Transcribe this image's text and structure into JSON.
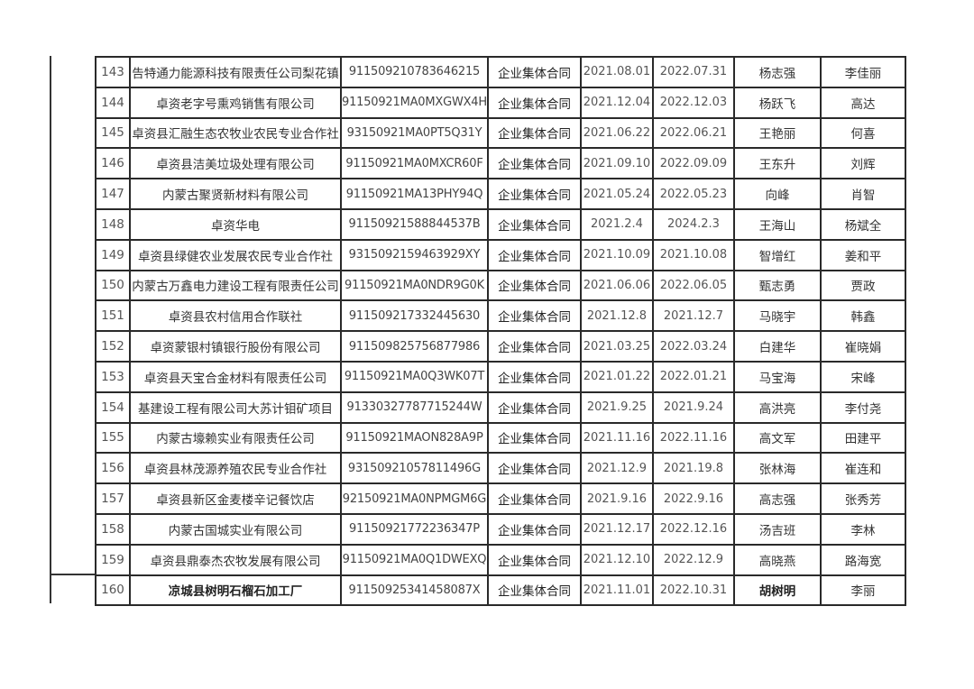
{
  "rows": [
    {
      "no": "143",
      "name": "告特通力能源科技有限责任公司梨花镇",
      "code": "91150921078364621​5",
      "type": "企业集体合同",
      "start": "2021.08.01",
      "end": "2022.07.31",
      "p1": "杨志强",
      "p2": "李佳丽"
    },
    {
      "no": "144",
      "name": "卓资老字号熏鸡销售有限公司",
      "code": "91150921MA0MXGWX4H",
      "type": "企业集体合同",
      "start": "2021.12.04",
      "end": "2022.12.03",
      "p1": "杨跃飞",
      "p2": "高达"
    },
    {
      "no": "145",
      "name": "卓资县汇融生态农牧业农民专业合作社",
      "code": "93150921MA0PT5Q31Y",
      "type": "企业集体合同",
      "start": "2021.06.22",
      "end": "2022.06.21",
      "p1": "王艳丽",
      "p2": "何喜"
    },
    {
      "no": "146",
      "name": "卓资县洁美垃圾处理有限公司",
      "code": "91150921MA0MXCR60F",
      "type": "企业集体合同",
      "start": "2021.09.10",
      "end": "2022.09.09",
      "p1": "王东升",
      "p2": "刘辉"
    },
    {
      "no": "147",
      "name": "内蒙古聚贤新材料有限公司",
      "code": "91150921MA13PHY94Q",
      "type": "企业集体合同",
      "start": "2021.05.24",
      "end": "2022.05.23",
      "p1": "向峰",
      "p2": "肖智"
    },
    {
      "no": "148",
      "name": "卓资华电",
      "code": "91150921588844537B",
      "type": "企业集体合同",
      "start": "2021.2.4",
      "end": "2024.2.3",
      "p1": "王海山",
      "p2": "杨斌全"
    },
    {
      "no": "149",
      "name": "卓资县绿健农业发展农民专业合作社",
      "code": "9315092159463929XY",
      "type": "企业集体合同",
      "start": "2021.10.09",
      "end": "2021.10.08",
      "p1": "智增红",
      "p2": "姜和平"
    },
    {
      "no": "150",
      "name": "内蒙古万鑫电力建设工程有限责任公司",
      "code": "91150921MA0NDR9G0K",
      "type": "企业集体合同",
      "start": "2021.06.06",
      "end": "2022.06.05",
      "p1": "甄志勇",
      "p2": "贾政"
    },
    {
      "no": "151",
      "name": "卓资县农村信用合作联社",
      "code": "911509217332445630",
      "type": "企业集体合同",
      "start": "2021.12.8",
      "end": "2021.12.7",
      "p1": "马晓宇",
      "p2": "韩鑫"
    },
    {
      "no": "152",
      "name": "卓资蒙银村镇银行股份有限公司",
      "code": "911509825756877986",
      "type": "企业集体合同",
      "start": "2021.03.25",
      "end": "2022.03.24",
      "p1": "白建华",
      "p2": "崔晓娟"
    },
    {
      "no": "153",
      "name": "卓资县天宝合金材料有限责任公司",
      "code": "91150921MA0Q3WK07T",
      "type": "企业集体合同",
      "start": "2021.01.22",
      "end": "2022.01.21",
      "p1": "马宝海",
      "p2": "宋峰"
    },
    {
      "no": "154",
      "name": "基建设工程有限公司大苏计钼矿项目",
      "code": "91330327787715244W",
      "type": "企业集体合同",
      "start": "2021.9.25",
      "end": "2021.9.24",
      "p1": "高洪亮",
      "p2": "李付尧"
    },
    {
      "no": "155",
      "name": "内蒙古壕赖实业有限责任公司",
      "code": "91150921MAON828A9P",
      "type": "企业集体合同",
      "start": "2021.11.16",
      "end": "2022.11.16",
      "p1": "高文军",
      "p2": "田建平"
    },
    {
      "no": "156",
      "name": "卓资县林茂源养殖农民专业合作社",
      "code": "93150921057811496G",
      "type": "企业集体合同",
      "start": "2021.12.9",
      "end": "2021.19.8",
      "p1": "张林海",
      "p2": "崔连和"
    },
    {
      "no": "157",
      "name": "卓资县新区金麦楼辛记餐饮店",
      "code": "92150921MA0NPMGM6G",
      "type": "企业集体合同",
      "start": "2021.9.16",
      "end": "2022.9.16",
      "p1": "高志强",
      "p2": "张秀芳"
    },
    {
      "no": "158",
      "name": "内蒙古国城实业有限公司",
      "code": "91150921772236347P",
      "type": "企业集体合同",
      "start": "2021.12.17",
      "end": "2022.12.16",
      "p1": "汤吉班",
      "p2": "李林"
    },
    {
      "no": "159",
      "name": "卓资县鼎泰杰农牧发展有限公司",
      "code": "91150921MA0Q1DWEXQ",
      "type": "企业集体合同",
      "start": "2021.12.10",
      "end": "2022.12.9",
      "p1": "高晓燕",
      "p2": "路海宽"
    },
    {
      "no": "160",
      "name": "凉城县树明石榴石加工厂",
      "code": "91150925341458087X",
      "type": "企业集体合同",
      "start": "2021.11.01",
      "end": "2022.10.31",
      "p1": "胡树明",
      "p2": "李丽"
    }
  ]
}
